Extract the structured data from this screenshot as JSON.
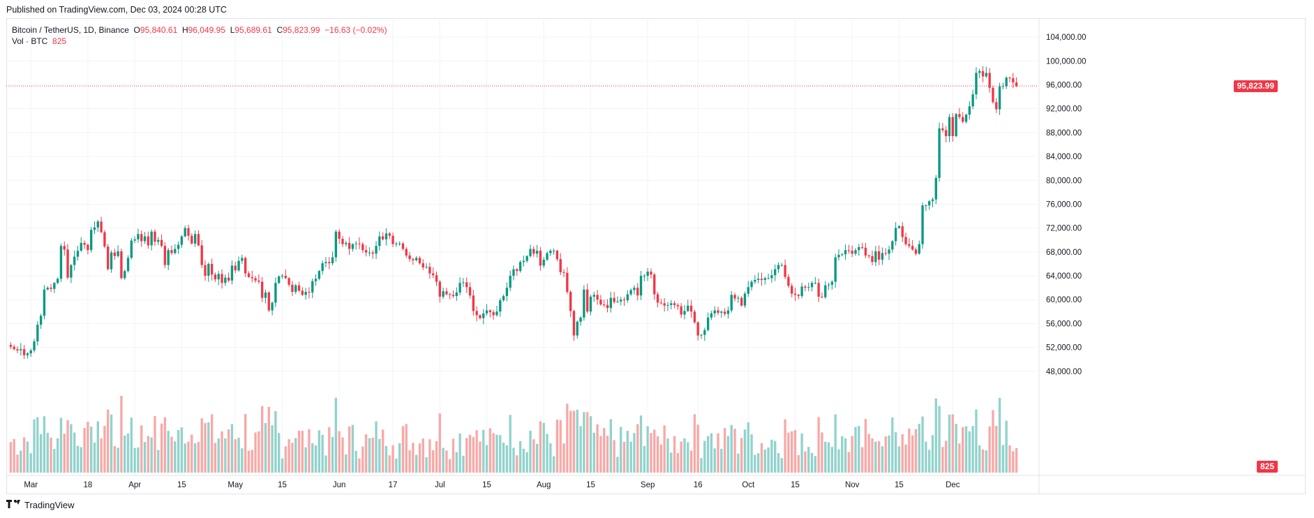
{
  "published": "Published on TradingView.com, Dec 03, 2024 00:28 UTC",
  "legend": {
    "symbol": "Bitcoin / TetherUS, 1D, Binance",
    "o_label": "O",
    "o_value": "95,840.61",
    "h_label": "H",
    "h_value": "96,049.95",
    "l_label": "L",
    "l_value": "95,689.61",
    "c_label": "C",
    "c_value": "95,823.99",
    "change": "−16.63 (−0.02%)",
    "vol_label": "Vol · BTC",
    "vol_value": "825"
  },
  "last_price_label": "95,823.99",
  "last_volume_label": "825",
  "footer": {
    "brand": "TradingView",
    "logo_icon": "tradingview-logo-icon"
  },
  "colors": {
    "up": "#089981",
    "down": "#f23645",
    "vol_up": "#92d2cc",
    "vol_down": "#f7a9a7",
    "grid": "#f0f3fa",
    "text": "#131722"
  },
  "chart_data": {
    "type": "candlestick",
    "title": "Bitcoin / TetherUS, 1D, Binance",
    "ylim": [
      44000,
      106000
    ],
    "y_ticks": [
      "104,000.00",
      "100,000.00",
      "96,000.00",
      "92,000.00",
      "88,000.00",
      "84,000.00",
      "80,000.00",
      "76,000.00",
      "72,000.00",
      "68,000.00",
      "64,000.00",
      "60,000.00",
      "56,000.00",
      "52,000.00",
      "48,000.00"
    ],
    "x_ticks": [
      {
        "label": "Mar",
        "index": 6
      },
      {
        "label": "18",
        "index": 23
      },
      {
        "label": "Apr",
        "index": 37
      },
      {
        "label": "15",
        "index": 51
      },
      {
        "label": "May",
        "index": 67
      },
      {
        "label": "15",
        "index": 81
      },
      {
        "label": "Jun",
        "index": 98
      },
      {
        "label": "17",
        "index": 114
      },
      {
        "label": "Jul",
        "index": 128
      },
      {
        "label": "15",
        "index": 142
      },
      {
        "label": "Aug",
        "index": 159
      },
      {
        "label": "15",
        "index": 173
      },
      {
        "label": "Sep",
        "index": 190
      },
      {
        "label": "16",
        "index": 205
      },
      {
        "label": "Oct",
        "index": 220
      },
      {
        "label": "15",
        "index": 234
      },
      {
        "label": "Nov",
        "index": 251
      },
      {
        "label": "15",
        "index": 265
      },
      {
        "label": "Dec",
        "index": 281
      }
    ],
    "close": [
      52100,
      51700,
      51500,
      51700,
      50700,
      51000,
      51500,
      53000,
      55800,
      57300,
      61700,
      62000,
      61800,
      62800,
      63500,
      69000,
      68400,
      63700,
      65800,
      67200,
      68200,
      69500,
      69200,
      68300,
      71700,
      72100,
      73100,
      71300,
      68900,
      65100,
      67900,
      67300,
      68100,
      63600,
      64800,
      67000,
      69900,
      70100,
      71000,
      69800,
      70600,
      69100,
      71400,
      69700,
      70000,
      69000,
      65800,
      68300,
      67800,
      68500,
      69200,
      70600,
      72000,
      70700,
      69400,
      71000,
      69100,
      65800,
      64000,
      66000,
      64200,
      63400,
      64300,
      62800,
      63700,
      63200,
      65700,
      64900,
      66500,
      67000,
      64400,
      63800,
      63600,
      63200,
      63000,
      60300,
      61200,
      58200,
      59500,
      62800,
      63900,
      64000,
      63600,
      62500,
      61300,
      62400,
      61500,
      60800,
      61300,
      61200,
      63100,
      63500,
      64800,
      66100,
      66300,
      66100,
      67100,
      71400,
      70200,
      69300,
      69500,
      68500,
      69300,
      69400,
      69300,
      68300,
      67900,
      67900,
      67700,
      69000,
      70600,
      70100,
      71100,
      70700,
      69300,
      69400,
      69400,
      68500,
      67400,
      66800,
      66600,
      67000,
      66100,
      65400,
      65500,
      64400,
      64100,
      63000,
      60500,
      61400,
      60900,
      60800,
      60600,
      61200,
      62800,
      62900,
      62100,
      60700,
      58100,
      57400,
      56900,
      57700,
      58200,
      57900,
      57400,
      58000,
      59900,
      60600,
      62000,
      64000,
      65100,
      64800,
      66300,
      66500,
      67300,
      68500,
      67700,
      68200,
      65700,
      66700,
      67800,
      68200,
      68200,
      66800,
      64600,
      64500,
      61300,
      58100,
      54000,
      56300,
      57000,
      61700,
      58000,
      60500,
      60800,
      60000,
      59200,
      59100,
      58600,
      60300,
      59600,
      59700,
      60000,
      59900,
      60900,
      61600,
      62000,
      60700,
      64000,
      64000,
      64700,
      64200,
      60900,
      59500,
      59400,
      59000,
      59100,
      59400,
      59100,
      58900,
      57500,
      58100,
      59000,
      58000,
      56200,
      54000,
      54100,
      54900,
      57000,
      57700,
      58200,
      57800,
      58000,
      57600,
      58200,
      60800,
      60200,
      60300,
      59000,
      61000,
      62100,
      63000,
      63300,
      63500,
      63300,
      63600,
      63600,
      64100,
      65100,
      65800,
      65800,
      63800,
      62300,
      61000,
      60800,
      60600,
      62200,
      62000,
      62100,
      62800,
      62800,
      60500,
      60400,
      62400,
      62500,
      63000,
      67100,
      67500,
      67600,
      68300,
      68200,
      67700,
      68300,
      68800,
      68700,
      67400,
      67300,
      66300,
      68100,
      66700,
      67800,
      67700,
      68400,
      69800,
      72000,
      72300,
      70500,
      69300,
      69000,
      68400,
      67700,
      69300,
      75800,
      75800,
      76500,
      76800,
      80400,
      88700,
      88400,
      87400,
      90600,
      87400,
      91100,
      90600,
      89800,
      91000,
      92400,
      94400,
      98000,
      98300,
      97400,
      98000,
      95500,
      93100,
      91900,
      95700,
      95800,
      97200,
      97100,
      96400,
      95800
    ]
  }
}
